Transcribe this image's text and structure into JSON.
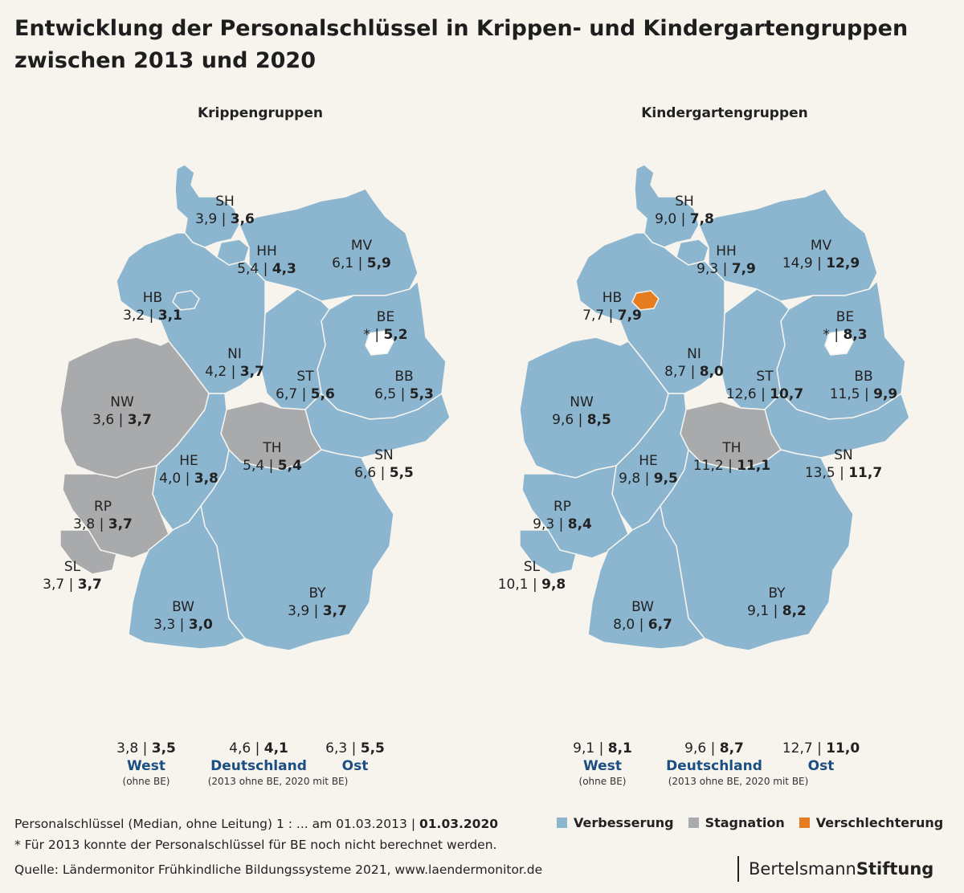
{
  "title_line1": "Entwicklung der Personalschlüssel in Krippen- und Kindergartengruppen",
  "title_line2": "zwischen 2013 und 2020",
  "colors": {
    "improvement": "#8cb6d0",
    "stagnation": "#a9aaac",
    "deterioration": "#e57c1f",
    "accent": "#1b4e82"
  },
  "maps": [
    {
      "title": "Krippengruppen",
      "states": {
        "SH": {
          "name": "SH",
          "v2013": "3,9",
          "v2020": "3,6",
          "status": "Verbesserung"
        },
        "HH": {
          "name": "HH",
          "v2013": "5,4",
          "v2020": "4,3",
          "status": "Verbesserung"
        },
        "MV": {
          "name": "MV",
          "v2013": "6,1",
          "v2020": "5,9",
          "status": "Verbesserung"
        },
        "HB": {
          "name": "HB",
          "v2013": "3,2",
          "v2020": "3,1",
          "status": "Verbesserung"
        },
        "BE": {
          "name": "BE",
          "v2013": "*",
          "v2020": "5,2",
          "status": "Verbesserung"
        },
        "NI": {
          "name": "NI",
          "v2013": "4,2",
          "v2020": "3,7",
          "status": "Verbesserung"
        },
        "ST": {
          "name": "ST",
          "v2013": "6,7",
          "v2020": "5,6",
          "status": "Verbesserung"
        },
        "BB": {
          "name": "BB",
          "v2013": "6,5",
          "v2020": "5,3",
          "status": "Verbesserung"
        },
        "NW": {
          "name": "NW",
          "v2013": "3,6",
          "v2020": "3,7",
          "status": "Stagnation"
        },
        "TH": {
          "name": "TH",
          "v2013": "5,4",
          "v2020": "5,4",
          "status": "Stagnation"
        },
        "HE": {
          "name": "HE",
          "v2013": "4,0",
          "v2020": "3,8",
          "status": "Verbesserung"
        },
        "SN": {
          "name": "SN",
          "v2013": "6,6",
          "v2020": "5,5",
          "status": "Verbesserung"
        },
        "RP": {
          "name": "RP",
          "v2013": "3,8",
          "v2020": "3,7",
          "status": "Stagnation"
        },
        "SL": {
          "name": "SL",
          "v2013": "3,7",
          "v2020": "3,7",
          "status": "Stagnation"
        },
        "BW": {
          "name": "BW",
          "v2013": "3,3",
          "v2020": "3,0",
          "status": "Verbesserung"
        },
        "BY": {
          "name": "BY",
          "v2013": "3,9",
          "v2020": "3,7",
          "status": "Verbesserung"
        }
      },
      "summary": {
        "west": {
          "v2013": "3,8",
          "v2020": "3,5",
          "name": "West",
          "note": "(ohne BE)"
        },
        "de": {
          "v2013": "4,6",
          "v2020": "4,1",
          "name": "Deutschland",
          "note": "(2013 ohne BE, 2020 mit BE)"
        },
        "ost": {
          "v2013": "6,3",
          "v2020": "5,5",
          "name": "Ost"
        }
      }
    },
    {
      "title": "Kindergartengruppen",
      "states": {
        "SH": {
          "name": "SH",
          "v2013": "9,0",
          "v2020": "7,8",
          "status": "Verbesserung"
        },
        "HH": {
          "name": "HH",
          "v2013": "9,3",
          "v2020": "7,9",
          "status": "Verbesserung"
        },
        "MV": {
          "name": "MV",
          "v2013": "14,9",
          "v2020": "12,9",
          "status": "Verbesserung"
        },
        "HB": {
          "name": "HB",
          "v2013": "7,7",
          "v2020": "7,9",
          "status": "Verschlechterung"
        },
        "BE": {
          "name": "BE",
          "v2013": "*",
          "v2020": "8,3",
          "status": "Verbesserung"
        },
        "NI": {
          "name": "NI",
          "v2013": "8,7",
          "v2020": "8,0",
          "status": "Verbesserung"
        },
        "ST": {
          "name": "ST",
          "v2013": "12,6",
          "v2020": "10,7",
          "status": "Verbesserung"
        },
        "BB": {
          "name": "BB",
          "v2013": "11,5",
          "v2020": "9,9",
          "status": "Verbesserung"
        },
        "NW": {
          "name": "NW",
          "v2013": "9,6",
          "v2020": "8,5",
          "status": "Verbesserung"
        },
        "TH": {
          "name": "TH",
          "v2013": "11,2",
          "v2020": "11,1",
          "status": "Stagnation"
        },
        "HE": {
          "name": "HE",
          "v2013": "9,8",
          "v2020": "9,5",
          "status": "Verbesserung"
        },
        "SN": {
          "name": "SN",
          "v2013": "13,5",
          "v2020": "11,7",
          "status": "Verbesserung"
        },
        "RP": {
          "name": "RP",
          "v2013": "9,3",
          "v2020": "8,4",
          "status": "Verbesserung"
        },
        "SL": {
          "name": "SL",
          "v2013": "10,1",
          "v2020": "9,8",
          "status": "Verbesserung"
        },
        "BW": {
          "name": "BW",
          "v2013": "8,0",
          "v2020": "6,7",
          "status": "Verbesserung"
        },
        "BY": {
          "name": "BY",
          "v2013": "9,1",
          "v2020": "8,2",
          "status": "Verbesserung"
        }
      },
      "summary": {
        "west": {
          "v2013": "9,1",
          "v2020": "8,1",
          "name": "West",
          "note": "(ohne BE)"
        },
        "de": {
          "v2013": "9,6",
          "v2020": "8,7",
          "name": "Deutschland",
          "note": "(2013 ohne BE, 2020 mit BE)"
        },
        "ost": {
          "v2013": "12,7",
          "v2020": "11,0",
          "name": "Ost"
        }
      }
    }
  ],
  "footer": {
    "line1_prefix": "Personalschlüssel (Median, ohne Leitung) 1 : ... am 01.03.2013 | ",
    "line1_bold": "01.03.2020",
    "line2": "* Für 2013 konnte der Personalschlüssel für BE noch nicht berechnet werden.",
    "line3": "Quelle: Ländermonitor Frühkindliche Bildungssysteme 2021, www.laendermonitor.de"
  },
  "legend": [
    {
      "label": "Verbesserung",
      "color": "#8cb6d0"
    },
    {
      "label": "Stagnation",
      "color": "#a9aaac"
    },
    {
      "label": "Verschlechterung",
      "color": "#e57c1f"
    }
  ],
  "brand": {
    "part1": "Bertelsmann",
    "part2": "Stiftung"
  }
}
